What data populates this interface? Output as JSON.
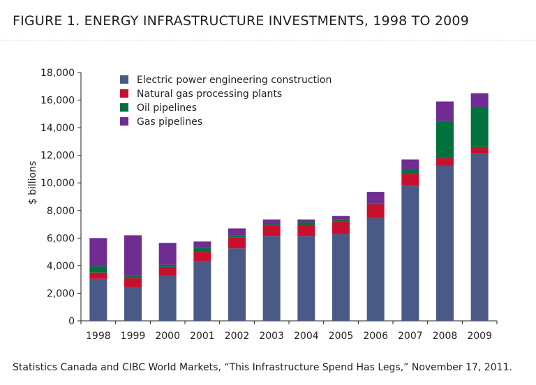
{
  "figure": {
    "title": "FIGURE 1. ENERGY INFRASTRUCTURE INVESTMENTS, 1998 TO 2009",
    "source": "Statistics Canada and CIBC World Markets, “This Infrastructure Spend Has Legs,” November 17, 2011."
  },
  "chart_data": {
    "type": "bar",
    "stacked": true,
    "title": "",
    "xlabel": "",
    "ylabel": "$ billions",
    "ylim": [
      0,
      18000
    ],
    "yticks": [
      0,
      2000,
      4000,
      6000,
      8000,
      10000,
      12000,
      14000,
      16000,
      18000
    ],
    "ytick_labels": [
      "0",
      "2,000",
      "4,000",
      "6,000",
      "8,000",
      "10,000",
      "12,000",
      "14,000",
      "16,000",
      "18,000"
    ],
    "grid": false,
    "legend_position": "top-left",
    "categories": [
      "1998",
      "1999",
      "2000",
      "2001",
      "2002",
      "2003",
      "2004",
      "2005",
      "2006",
      "2007",
      "2008",
      "2009"
    ],
    "series": [
      {
        "name": "Electric power engineering construction",
        "color": "#4a5a86",
        "values": [
          3050,
          2450,
          3250,
          4350,
          5250,
          6150,
          6150,
          6300,
          7450,
          9800,
          11250,
          12100
        ]
      },
      {
        "name": "Natural gas processing plants",
        "color": "#c8102e",
        "values": [
          450,
          650,
          650,
          650,
          800,
          750,
          800,
          900,
          1000,
          850,
          550,
          500
        ]
      },
      {
        "name": "Oil pipelines",
        "color": "#00703c",
        "values": [
          450,
          150,
          150,
          300,
          150,
          100,
          200,
          150,
          50,
          350,
          2700,
          2900
        ]
      },
      {
        "name": "Gas pipelines",
        "color": "#6f2c91",
        "values": [
          2050,
          2950,
          1600,
          450,
          500,
          350,
          200,
          250,
          850,
          700,
          1400,
          1000
        ]
      }
    ]
  }
}
